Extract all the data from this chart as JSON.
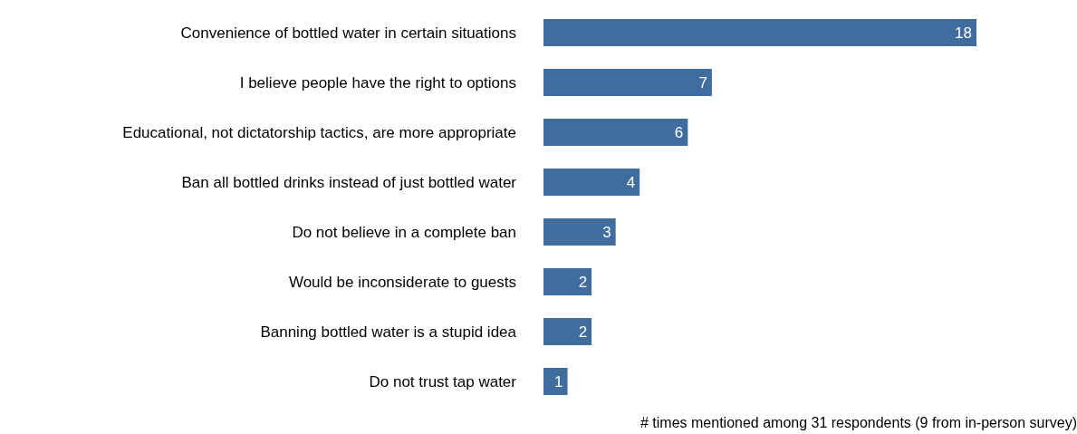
{
  "chart_data": {
    "type": "bar",
    "orientation": "horizontal",
    "xlabel": "# times mentioned among 31 respondents (9 from in-person survey)",
    "categories": [
      "Convenience of bottled water in certain situations",
      "I believe people have the right to options",
      "Educational, not dictatorship tactics, are more appropriate",
      "Ban all bottled drinks instead of just bottled water",
      "Do not believe in a complete ban",
      "Would be inconsiderate to guests",
      "Banning bottled water is a stupid idea",
      "Do not trust tap water"
    ],
    "values": [
      18,
      7,
      6,
      4,
      3,
      2,
      2,
      1
    ],
    "color": "#3f6d9e",
    "data_labels": true
  }
}
